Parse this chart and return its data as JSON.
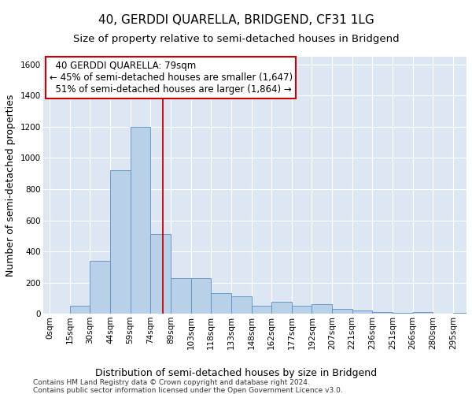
{
  "title": "40, GERDDI QUARELLA, BRIDGEND, CF31 1LG",
  "subtitle": "Size of property relative to semi-detached houses in Bridgend",
  "xlabel": "Distribution of semi-detached houses by size in Bridgend",
  "ylabel": "Number of semi-detached properties",
  "footer_line1": "Contains HM Land Registry data © Crown copyright and database right 2024.",
  "footer_line2": "Contains public sector information licensed under the Open Government Licence v3.0.",
  "bin_labels": [
    "0sqm",
    "15sqm",
    "30sqm",
    "44sqm",
    "59sqm",
    "74sqm",
    "89sqm",
    "103sqm",
    "118sqm",
    "133sqm",
    "148sqm",
    "162sqm",
    "177sqm",
    "192sqm",
    "207sqm",
    "221sqm",
    "236sqm",
    "251sqm",
    "266sqm",
    "280sqm",
    "295sqm"
  ],
  "bar_heights": [
    0,
    50,
    340,
    920,
    1200,
    510,
    230,
    230,
    130,
    110,
    50,
    75,
    50,
    60,
    30,
    20,
    10,
    5,
    10,
    0,
    5
  ],
  "bar_color": "#b8d0e8",
  "bar_edge_color": "#5a8fc0",
  "property_line_x": 84,
  "annotation_text_line1": "  40 GERDDI QUARELLA: 79sqm",
  "annotation_text_line2": "← 45% of semi-detached houses are smaller (1,647)",
  "annotation_text_line3": "  51% of semi-detached houses are larger (1,864) →",
  "annotation_box_facecolor": "#ffffff",
  "annotation_box_edgecolor": "#cc0000",
  "vline_color": "#cc0000",
  "ylim": [
    0,
    1650
  ],
  "yticks": [
    0,
    200,
    400,
    600,
    800,
    1000,
    1200,
    1400,
    1600
  ],
  "plot_background_color": "#dce7f3",
  "title_fontsize": 11,
  "subtitle_fontsize": 9.5,
  "axis_label_fontsize": 9,
  "tick_fontsize": 7.5,
  "annotation_fontsize": 8.5
}
